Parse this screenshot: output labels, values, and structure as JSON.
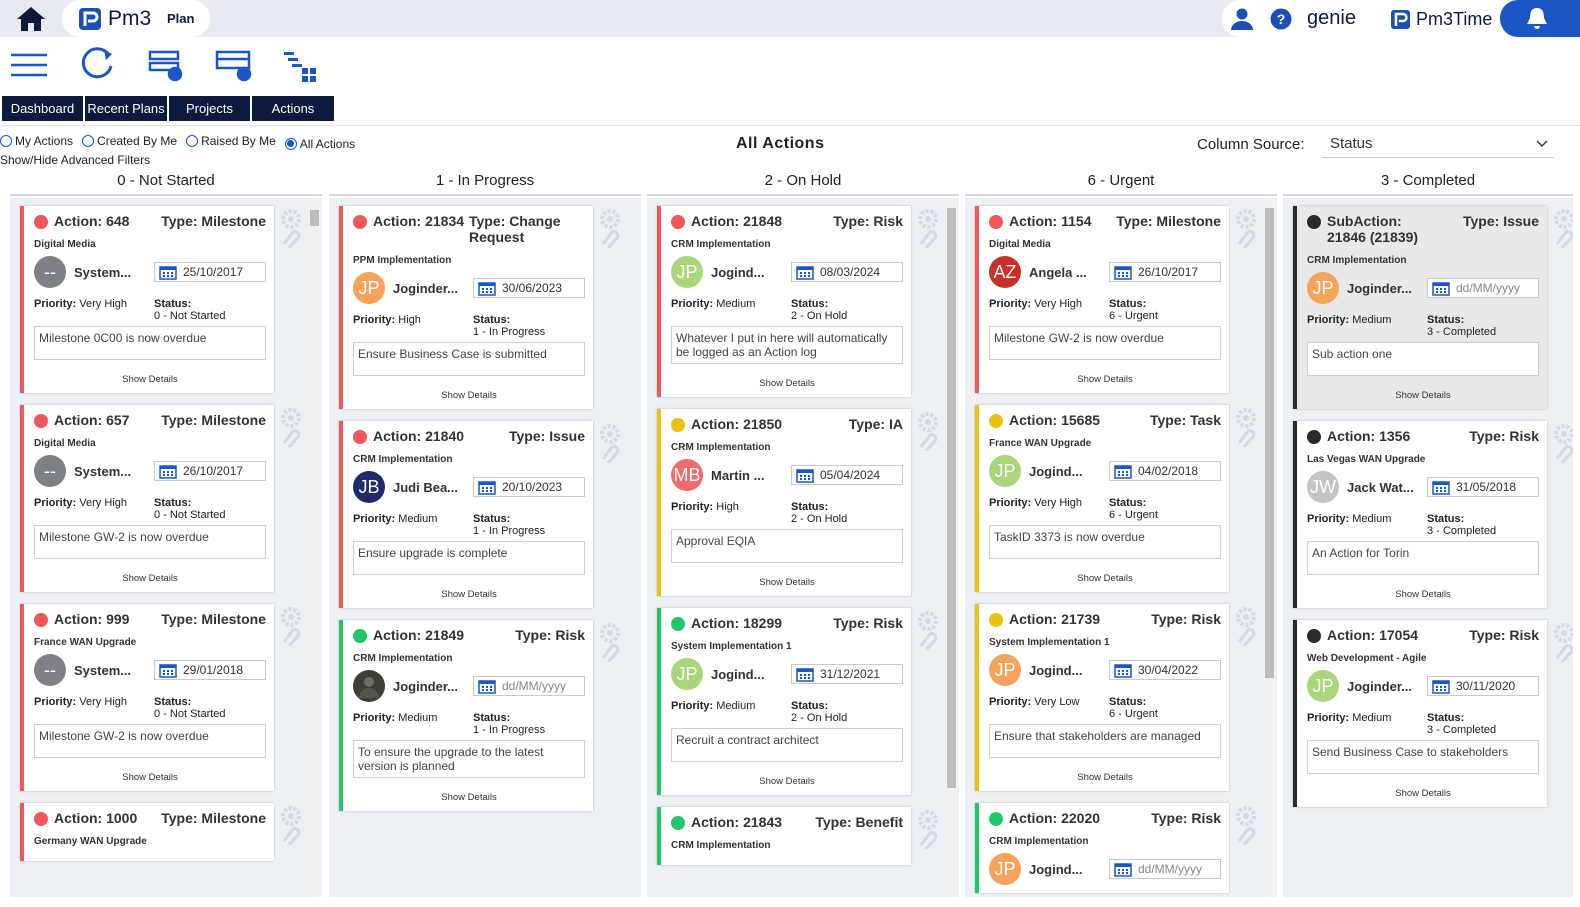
{
  "header": {
    "app": "Pm3",
    "section": "Plan",
    "brand": "genie",
    "time_app": "Pm3Time"
  },
  "tabs": [
    "Dashboard",
    "Recent Plans",
    "Projects",
    "Actions"
  ],
  "filters": {
    "options": [
      "My Actions",
      "Created By Me",
      "Raised By Me",
      "All Actions"
    ],
    "selected": 3,
    "advanced": "Show/Hide Advanced Filters"
  },
  "title": "All Actions",
  "column_source": {
    "label": "Column Source:",
    "value": "Status"
  },
  "labels": {
    "priority": "Priority:",
    "status": "Status:",
    "details": "Show Details"
  },
  "columns": [
    {
      "title": "0 - Not Started",
      "cards": [
        {
          "title": "Action: 648",
          "type": "Type: Milestone",
          "project": "Digital Media",
          "initials": "--",
          "avatar_color": "#7d8187",
          "user": "System...",
          "date": "25/10/2017",
          "priority": "Very High",
          "status": "0 - Not Started",
          "description": "Milestone 0C00  is now overdue",
          "color": "#f0575a"
        },
        {
          "title": "Action: 657",
          "type": "Type: Milestone",
          "project": "Digital Media",
          "initials": "--",
          "avatar_color": "#7d8187",
          "user": "System...",
          "date": "26/10/2017",
          "priority": "Very High",
          "status": "0 - Not Started",
          "description": "Milestone GW-2  is now overdue",
          "color": "#f0575a"
        },
        {
          "title": "Action: 999",
          "type": "Type: Milestone",
          "project": "France WAN Upgrade",
          "initials": "--",
          "avatar_color": "#7d8187",
          "user": "System...",
          "date": "29/01/2018",
          "priority": "Very High",
          "status": "0 - Not Started",
          "description": "Milestone GW-2  is now overdue",
          "color": "#f0575a"
        },
        {
          "title": "Action: 1000",
          "type": "Type: Milestone",
          "project": "Germany WAN Upgrade",
          "color": "#f0575a"
        }
      ]
    },
    {
      "title": "1 - In Progress",
      "cards": [
        {
          "title": "Action: 21834",
          "type": "Type: Change Request",
          "project": "PPM Implementation",
          "initials": "JP",
          "avatar_color": "#f5a25a",
          "user": "Joginder...",
          "date": "30/06/2023",
          "priority": "High",
          "status": "1 - In Progress",
          "description": "Ensure Business Case is submitted",
          "color": "#f0575a"
        },
        {
          "title": "Action: 21840",
          "type": "Type: Issue",
          "project": "CRM Implementation",
          "initials": "JB",
          "avatar_color": "#1f2a6b",
          "user": "Judi Bea...",
          "date": "20/10/2023",
          "priority": "Medium",
          "status": "1 - In Progress",
          "description": "Ensure upgrade is complete",
          "color": "#f0575a"
        },
        {
          "title": "Action: 21849",
          "type": "Type: Risk",
          "project": "CRM Implementation",
          "user": "Joginder...",
          "date": "dd/MM/yyyy",
          "placeholder": true,
          "priority": "Medium",
          "status": "1 - In Progress",
          "description": "To ensure the upgrade to the latest version is planned",
          "color": "#22c76b"
        }
      ]
    },
    {
      "title": "2 - On Hold",
      "cards": [
        {
          "title": "Action: 21848",
          "type": "Type: Risk",
          "project": "CRM Implementation",
          "initials": "JP",
          "avatar_color": "#a9d67a",
          "user": "Jogind...",
          "date": "08/03/2024",
          "priority": "Medium",
          "status": "2 - On Hold",
          "description": "Whatever I put in here will automatically be logged as an Action log",
          "color": "#f0575a"
        },
        {
          "title": "Action: 21850",
          "type": "Type: IA",
          "project": "CRM Implementation",
          "initials": "MB",
          "avatar_color": "#f26a6a",
          "user": "Martin ...",
          "date": "05/04/2024",
          "priority": "High",
          "status": "2 - On Hold",
          "description": "Approval EQIA",
          "color": "#e8c313"
        },
        {
          "title": "Action: 18299",
          "type": "Type: Risk",
          "project": "System Implementation 1",
          "initials": "JP",
          "avatar_color": "#a9d67a",
          "user": "Jogind...",
          "date": "31/12/2021",
          "priority": "Medium",
          "status": "2 - On Hold",
          "description": "Recruit a contract architect",
          "color": "#22c76b"
        },
        {
          "title": "Action: 21843",
          "type": "Type: Benefit",
          "project": "CRM Implementation",
          "color": "#22c76b"
        }
      ]
    },
    {
      "title": "6 - Urgent",
      "cards": [
        {
          "title": "Action: 1154",
          "type": "Type: Milestone",
          "project": "Digital Media",
          "initials": "AZ",
          "avatar_color": "#c9302c",
          "user": "Angela ...",
          "date": "26/10/2017",
          "priority": "Very High",
          "status": "6 - Urgent",
          "description": "Milestone GW-2  is now overdue",
          "color": "#f0575a"
        },
        {
          "title": "Action: 15685",
          "type": "Type: Task",
          "project": "France WAN Upgrade",
          "initials": "JP",
          "avatar_color": "#a9d67a",
          "user": "Jogind...",
          "date": "04/02/2018",
          "priority": "Very High",
          "status": "6 - Urgent",
          "description": "TaskID 3373 is now overdue",
          "color": "#e8c313"
        },
        {
          "title": "Action: 21739",
          "type": "Type: Risk",
          "project": "System Implementation 1",
          "initials": "JP",
          "avatar_color": "#f5a25a",
          "user": "Jogind...",
          "date": "30/04/2022",
          "priority": "Very Low",
          "status": "6 - Urgent",
          "description": "Ensure that stakeholders are managed",
          "color": "#e8c313"
        },
        {
          "title": "Action: 22020",
          "type": "Type: Risk",
          "project": "CRM Implementation",
          "initials": "JP",
          "avatar_color": "#f5a25a",
          "user": "Jogind...",
          "date": "dd/MM/yyyy",
          "placeholder": true,
          "color": "#22c76b"
        }
      ]
    },
    {
      "title": "3 - Completed",
      "cards": [
        {
          "title": "SubAction: 21846 (21839)",
          "type": "Type: Issue",
          "project": "CRM Implementation",
          "initials": "JP",
          "avatar_color": "#f5a25a",
          "user": "Joginder...",
          "date": "dd/MM/yyyy",
          "placeholder": true,
          "priority": "Medium",
          "status": "3 - Completed",
          "description": "Sub action one",
          "color": "#2b2b2b",
          "shaded": true
        },
        {
          "title": "Action: 1356",
          "type": "Type: Risk",
          "project": "Las Vegas WAN Upgrade",
          "initials": "JW",
          "avatar_color": "#c4c4c4",
          "user": "Jack Wat...",
          "date": "31/05/2018",
          "priority": "Medium",
          "status": "3 - Completed",
          "description": "An Action for Torin",
          "color": "#2b2b2b"
        },
        {
          "title": "Action: 17054",
          "type": "Type: Risk",
          "project": "Web Development - Agile",
          "initials": "JP",
          "avatar_color": "#a9d67a",
          "user": "Joginder...",
          "date": "30/11/2020",
          "priority": "Medium",
          "status": "3 - Completed",
          "description": "Send Business Case to stakeholders",
          "color": "#2b2b2b"
        }
      ]
    }
  ]
}
